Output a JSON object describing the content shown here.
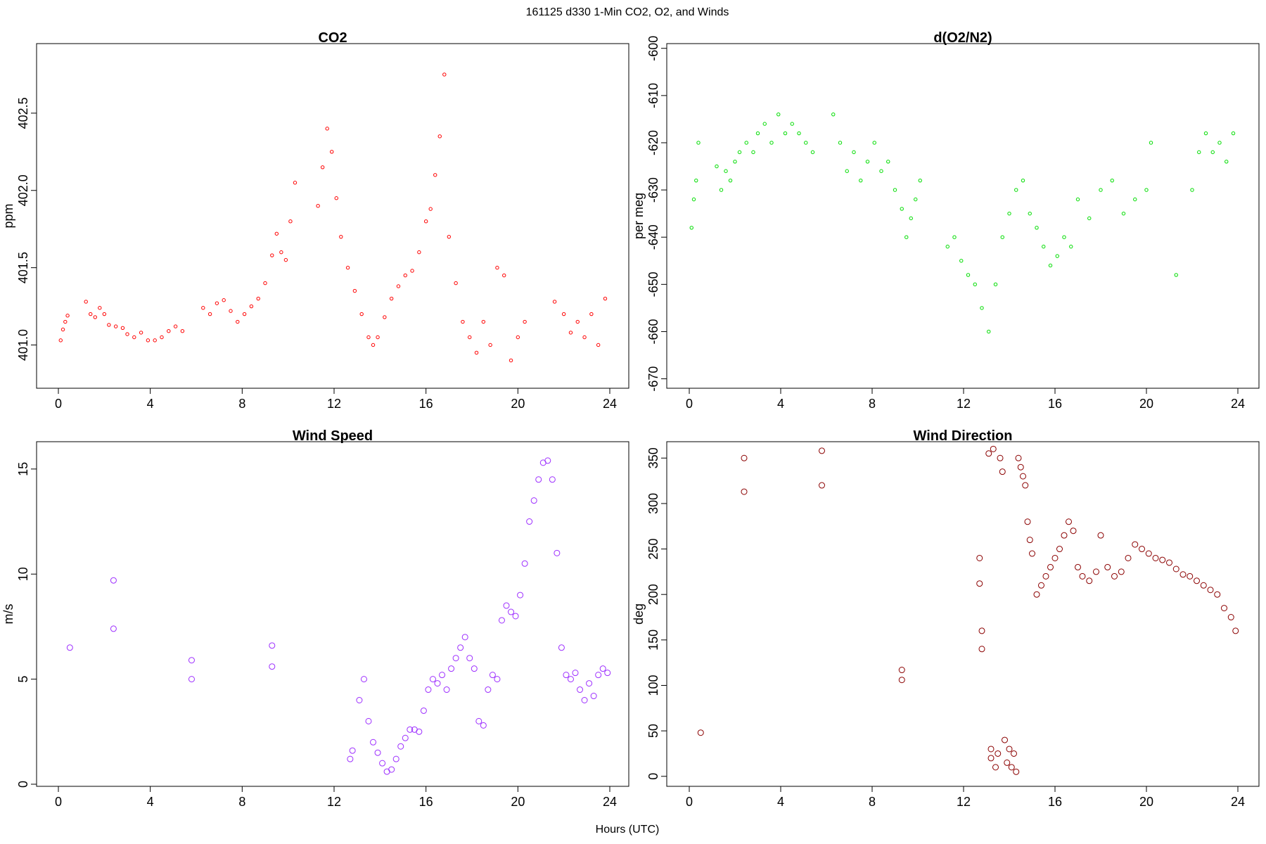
{
  "figure": {
    "title": "161125   d330   1-Min CO2, O2, and Winds",
    "xlabel": "Hours (UTC)"
  },
  "chart_data": [
    {
      "id": "co2",
      "type": "scatter",
      "title": "CO2",
      "xlabel": "Hours (UTC)",
      "ylabel": "ppm",
      "xlim": [
        0,
        24
      ],
      "ylim": [
        400.72,
        402.95
      ],
      "xticks": [
        0,
        4,
        8,
        12,
        16,
        20,
        24
      ],
      "yticks": [
        401.0,
        401.5,
        402.0,
        402.5
      ],
      "ytick_labels": [
        "401.0",
        "401.5",
        "402.0",
        "402.5"
      ],
      "color": "#ff0000",
      "grid": false,
      "series": [
        {
          "x": [
            0.1,
            0.2,
            0.3,
            0.4,
            1.2,
            1.4,
            1.6,
            1.8,
            2.0,
            2.2,
            2.5,
            2.8,
            3.0,
            3.3,
            3.6,
            3.9,
            4.2,
            4.5,
            4.8,
            5.1,
            5.4,
            6.3,
            6.6,
            6.9,
            7.2,
            7.5,
            7.8,
            8.1,
            8.4,
            8.7,
            9.0,
            9.3,
            9.5,
            9.7,
            9.9,
            10.1,
            10.3,
            11.3,
            11.5,
            11.7,
            11.9,
            12.1,
            12.3,
            12.6,
            12.9,
            13.2,
            13.5,
            13.7,
            13.9,
            14.2,
            14.5,
            14.8,
            15.1,
            15.4,
            15.7,
            16.0,
            16.2,
            16.4,
            16.6,
            16.8,
            17.0,
            17.3,
            17.6,
            17.9,
            18.2,
            18.5,
            18.8,
            19.1,
            19.4,
            19.7,
            20.0,
            20.3,
            21.6,
            22.0,
            22.3,
            22.6,
            22.9,
            23.2,
            23.5,
            23.8
          ],
          "y": [
            401.03,
            401.1,
            401.15,
            401.19,
            401.28,
            401.2,
            401.18,
            401.24,
            401.2,
            401.13,
            401.12,
            401.11,
            401.07,
            401.05,
            401.08,
            401.03,
            401.03,
            401.05,
            401.09,
            401.12,
            401.09,
            401.24,
            401.2,
            401.27,
            401.29,
            401.22,
            401.15,
            401.2,
            401.25,
            401.3,
            401.4,
            401.58,
            401.72,
            401.6,
            401.55,
            401.8,
            402.05,
            401.9,
            402.15,
            402.4,
            402.25,
            401.95,
            401.7,
            401.5,
            401.35,
            401.2,
            401.05,
            401.0,
            401.05,
            401.18,
            401.3,
            401.38,
            401.45,
            401.48,
            401.6,
            401.8,
            401.88,
            402.1,
            402.35,
            402.75,
            401.7,
            401.4,
            401.15,
            401.05,
            400.95,
            401.15,
            401.0,
            401.5,
            401.45,
            400.9,
            401.05,
            401.15,
            401.28,
            401.2,
            401.08,
            401.15,
            401.05,
            401.2,
            401.0,
            401.3
          ]
        }
      ]
    },
    {
      "id": "o2n2",
      "type": "scatter",
      "title": "d(O2/N2)",
      "xlabel": "Hours (UTC)",
      "ylabel": "per meg",
      "xlim": [
        0,
        24
      ],
      "ylim": [
        -672,
        -599
      ],
      "xticks": [
        0,
        4,
        8,
        12,
        16,
        20,
        24
      ],
      "yticks": [
        -600,
        -610,
        -620,
        -630,
        -640,
        -650,
        -660,
        -670
      ],
      "ytick_labels": [
        "-600",
        "-610",
        "-620",
        "-630",
        "-640",
        "-650",
        "-660",
        "-670"
      ],
      "color": "#00dd00",
      "grid": false,
      "series": [
        {
          "x": [
            0.1,
            0.2,
            0.3,
            0.4,
            1.2,
            1.4,
            1.6,
            1.8,
            2.0,
            2.2,
            2.5,
            2.8,
            3.0,
            3.3,
            3.6,
            3.9,
            4.2,
            4.5,
            4.8,
            5.1,
            5.4,
            6.3,
            6.6,
            6.9,
            7.2,
            7.5,
            7.8,
            8.1,
            8.4,
            8.7,
            9.0,
            9.3,
            9.5,
            9.7,
            9.9,
            10.1,
            11.3,
            11.6,
            11.9,
            12.2,
            12.5,
            12.8,
            13.1,
            13.4,
            13.7,
            14.0,
            14.3,
            14.6,
            14.9,
            15.2,
            15.5,
            15.8,
            16.1,
            16.4,
            16.7,
            17.0,
            17.5,
            18.0,
            18.5,
            19.0,
            19.5,
            20.0,
            20.2,
            21.3,
            22.0,
            22.3,
            22.6,
            22.9,
            23.2,
            23.5,
            23.8
          ],
          "y": [
            -638,
            -632,
            -628,
            -620,
            -625,
            -630,
            -626,
            -628,
            -624,
            -622,
            -620,
            -622,
            -618,
            -616,
            -620,
            -614,
            -618,
            -616,
            -618,
            -620,
            -622,
            -614,
            -620,
            -626,
            -622,
            -628,
            -624,
            -620,
            -626,
            -624,
            -630,
            -634,
            -640,
            -636,
            -632,
            -628,
            -642,
            -640,
            -645,
            -648,
            -650,
            -655,
            -660,
            -650,
            -640,
            -635,
            -630,
            -628,
            -635,
            -638,
            -642,
            -646,
            -644,
            -640,
            -642,
            -632,
            -636,
            -630,
            -628,
            -635,
            -632,
            -630,
            -620,
            -648,
            -630,
            -622,
            -618,
            -622,
            -620,
            -624,
            -618
          ]
        }
      ]
    },
    {
      "id": "wind-speed",
      "type": "scatter",
      "title": "Wind Speed",
      "xlabel": "Hours (UTC)",
      "ylabel": "m/s",
      "xlim": [
        0,
        24
      ],
      "ylim": [
        -0.1,
        16.3
      ],
      "xticks": [
        0,
        4,
        8,
        12,
        16,
        20,
        24
      ],
      "yticks": [
        0,
        5,
        10,
        15
      ],
      "ytick_labels": [
        "0",
        "5",
        "10",
        "15"
      ],
      "color": "#9d2eff",
      "grid": false,
      "series": [
        {
          "x": [
            0.5,
            2.4,
            2.4,
            5.8,
            5.8,
            9.3,
            9.3,
            12.7,
            12.8,
            13.1,
            13.3,
            13.5,
            13.7,
            13.9,
            14.1,
            14.3,
            14.5,
            14.7,
            14.9,
            15.1,
            15.3,
            15.5,
            15.7,
            15.9,
            16.1,
            16.3,
            16.5,
            16.7,
            16.9,
            17.1,
            17.3,
            17.5,
            17.7,
            17.9,
            18.1,
            18.3,
            18.5,
            18.7,
            18.9,
            19.1,
            19.3,
            19.5,
            19.7,
            19.9,
            20.1,
            20.3,
            20.5,
            20.7,
            20.9,
            21.1,
            21.3,
            21.5,
            21.7,
            21.9,
            22.1,
            22.3,
            22.5,
            22.7,
            22.9,
            23.1,
            23.3,
            23.5,
            23.7,
            23.9
          ],
          "y": [
            6.5,
            9.7,
            7.4,
            5.9,
            5.0,
            6.6,
            5.6,
            1.2,
            1.6,
            4.0,
            5.0,
            3.0,
            2.0,
            1.5,
            1.0,
            0.6,
            0.7,
            1.2,
            1.8,
            2.2,
            2.6,
            2.6,
            2.5,
            3.5,
            4.5,
            5.0,
            4.8,
            5.2,
            4.5,
            5.5,
            6.0,
            6.5,
            7.0,
            6.0,
            5.5,
            3.0,
            2.8,
            4.5,
            5.2,
            5.0,
            7.8,
            8.5,
            8.2,
            8.0,
            9.0,
            10.5,
            12.5,
            13.5,
            14.5,
            15.3,
            15.4,
            14.5,
            11.0,
            6.5,
            5.2,
            5.0,
            5.3,
            4.5,
            4.0,
            4.8,
            4.2,
            5.2,
            5.5,
            5.3
          ]
        }
      ]
    },
    {
      "id": "wind-direction",
      "type": "scatter",
      "title": "Wind Direction",
      "xlabel": "Hours (UTC)",
      "ylabel": "deg",
      "xlim": [
        0,
        24
      ],
      "ylim": [
        -11,
        368
      ],
      "xticks": [
        0,
        4,
        8,
        12,
        16,
        20,
        24
      ],
      "yticks": [
        0,
        50,
        100,
        150,
        200,
        250,
        300,
        350
      ],
      "ytick_labels": [
        "0",
        "50",
        "100",
        "150",
        "200",
        "250",
        "300",
        "350"
      ],
      "color": "#8b0000",
      "grid": false,
      "series": [
        {
          "x": [
            0.5,
            2.4,
            2.4,
            5.8,
            5.8,
            9.3,
            9.3,
            12.7,
            12.7,
            12.8,
            12.8,
            13.1,
            13.2,
            13.2,
            13.3,
            13.4,
            13.5,
            13.6,
            13.7,
            13.8,
            13.9,
            14.0,
            14.1,
            14.2,
            14.3,
            14.4,
            14.5,
            14.6,
            14.7,
            14.8,
            14.9,
            15.0,
            15.2,
            15.4,
            15.6,
            15.8,
            16.0,
            16.2,
            16.4,
            16.6,
            16.8,
            17.0,
            17.2,
            17.5,
            17.8,
            18.0,
            18.3,
            18.6,
            18.9,
            19.2,
            19.5,
            19.8,
            20.1,
            20.4,
            20.7,
            21.0,
            21.3,
            21.6,
            21.9,
            22.2,
            22.5,
            22.8,
            23.1,
            23.4,
            23.7,
            23.9
          ],
          "y": [
            48,
            350,
            313,
            358,
            320,
            117,
            106,
            240,
            212,
            160,
            140,
            355,
            30,
            20,
            360,
            10,
            25,
            350,
            335,
            40,
            15,
            30,
            10,
            25,
            5,
            350,
            340,
            330,
            320,
            280,
            260,
            245,
            200,
            210,
            220,
            230,
            240,
            250,
            265,
            280,
            270,
            230,
            220,
            215,
            225,
            265,
            230,
            220,
            225,
            240,
            255,
            250,
            245,
            240,
            238,
            235,
            228,
            222,
            220,
            215,
            210,
            205,
            200,
            185,
            175,
            160
          ]
        }
      ]
    }
  ]
}
